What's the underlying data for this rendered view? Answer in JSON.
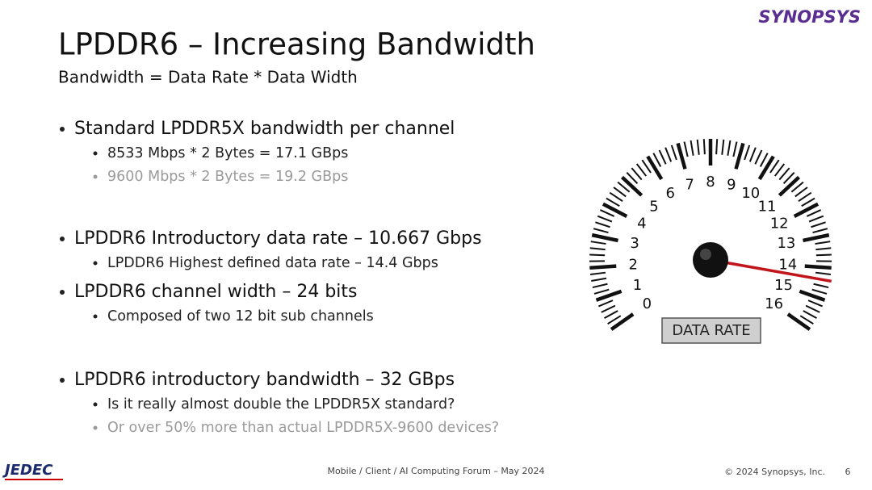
{
  "header": {
    "title": "LPDDR6 – Increasing Bandwidth",
    "subtitle": "Bandwidth = Data Rate * Data Width"
  },
  "bullets": [
    {
      "text": "Standard LPDDR5X bandwidth per channel",
      "sub": [
        {
          "text": "8533 Mbps * 2 Bytes = 17.1 GBps",
          "muted": false
        },
        {
          "text": "9600 Mbps * 2 Bytes = 19.2 GBps",
          "muted": true
        }
      ]
    },
    {
      "text": "LPDDR6 Introductory data rate – 10.667 Gbps",
      "sub": [
        {
          "text": "LPDDR6 Highest defined data rate – 14.4 Gbps",
          "muted": false
        }
      ]
    },
    {
      "text": "LPDDR6 channel width – 24 bits",
      "sub": [
        {
          "text": "Composed of two 12 bit sub channels",
          "muted": false
        }
      ]
    },
    {
      "text": "LPDDR6 introductory bandwidth – 32 GBps",
      "sub": [
        {
          "text": "Is it really almost double the LPDDR5X standard?",
          "muted": false
        },
        {
          "text": "Or over 50% more than actual LPDDR5X-9600 devices?",
          "muted": true
        }
      ]
    }
  ],
  "gauge": {
    "labels": [
      0,
      1,
      2,
      3,
      4,
      5,
      6,
      7,
      8,
      9,
      10,
      11,
      12,
      13,
      14,
      15,
      16
    ],
    "needle": 14.4,
    "caption": "DATA RATE"
  },
  "logos": {
    "left": "JEDEC",
    "right": "SYNOPSYS"
  },
  "footer": {
    "event": "Mobile / Client / AI Computing Forum – May 2024",
    "copyright": "© 2024 Synopsys, Inc.",
    "page": 6
  }
}
